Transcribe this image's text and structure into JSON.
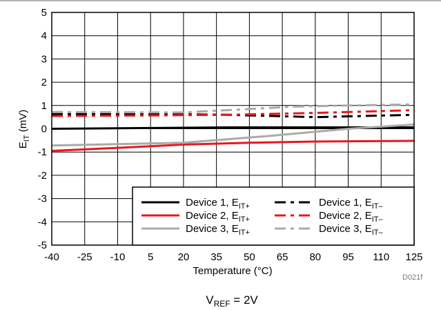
{
  "chart_data": {
    "type": "line",
    "xlabel_main": "Temperature (",
    "xlabel_unit": "°C)",
    "ylabel_main": "E",
    "ylabel_sub": "IT",
    "ylabel_unit": " (mV)",
    "x_ticks": [
      "-40",
      "-25",
      "-10",
      "5",
      "20",
      "35",
      "50",
      "65",
      "80",
      "95",
      "110",
      "125"
    ],
    "y_ticks": [
      "5",
      "4",
      "3",
      "2",
      "1",
      "0",
      "-1",
      "-2",
      "-3",
      "-4",
      "-5"
    ],
    "xlim": [
      -40,
      125
    ],
    "ylim": [
      -5,
      5
    ],
    "grid": true,
    "legend_position": "bottom-right",
    "figure_code": "D021f",
    "caption_main": "V",
    "caption_sub": "REF",
    "caption_rest": " = 2V",
    "series": [
      {
        "name": "Device 1, E",
        "name_sub": "IT+",
        "color": "#000000",
        "dash": "solid",
        "x": [
          -40,
          0,
          40,
          80,
          125
        ],
        "y": [
          0.0,
          0.03,
          0.06,
          0.06,
          0.06
        ]
      },
      {
        "name": "Device 1, E",
        "name_sub": "IT–",
        "color": "#000000",
        "dash": "dashdot",
        "x": [
          -40,
          0,
          40,
          80,
          125
        ],
        "y": [
          0.63,
          0.64,
          0.6,
          0.5,
          0.6
        ]
      },
      {
        "name": "Device 2, E",
        "name_sub": "IT+",
        "color": "#e8171f",
        "dash": "solid",
        "x": [
          -40,
          -10,
          20,
          50,
          80,
          125
        ],
        "y": [
          -0.95,
          -0.82,
          -0.68,
          -0.6,
          -0.55,
          -0.52
        ]
      },
      {
        "name": "Device 2, E",
        "name_sub": "IT–",
        "color": "#e8171f",
        "dash": "dashdot",
        "x": [
          -40,
          0,
          40,
          80,
          125
        ],
        "y": [
          0.55,
          0.57,
          0.6,
          0.68,
          0.8
        ]
      },
      {
        "name": "Device 3, E",
        "name_sub": "IT+",
        "color": "#aaaaaa",
        "dash": "solid",
        "x": [
          -40,
          20,
          60,
          95,
          125
        ],
        "y": [
          -0.72,
          -0.6,
          -0.3,
          0.0,
          0.18
        ]
      },
      {
        "name": "Device 3, E",
        "name_sub": "IT–",
        "color": "#aaaaaa",
        "dash": "dashdot",
        "x": [
          -40,
          20,
          50,
          70,
          95,
          125
        ],
        "y": [
          0.72,
          0.7,
          0.85,
          0.95,
          1.0,
          1.05
        ]
      }
    ]
  }
}
